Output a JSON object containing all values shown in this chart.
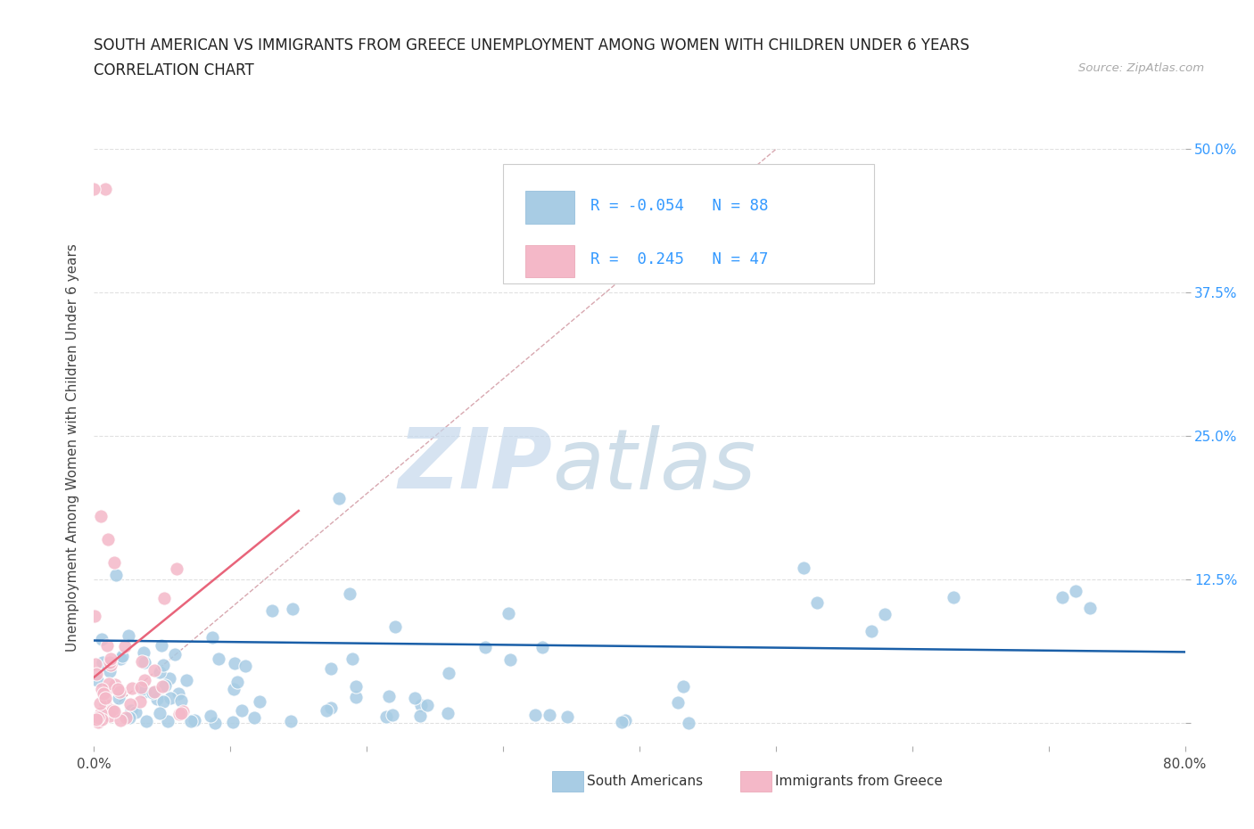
{
  "title_line1": "SOUTH AMERICAN VS IMMIGRANTS FROM GREECE UNEMPLOYMENT AMONG WOMEN WITH CHILDREN UNDER 6 YEARS",
  "title_line2": "CORRELATION CHART",
  "source_text": "Source: ZipAtlas.com",
  "ylabel": "Unemployment Among Women with Children Under 6 years",
  "xlim": [
    0.0,
    0.8
  ],
  "ylim": [
    -0.02,
    0.5
  ],
  "yticks": [
    0.0,
    0.125,
    0.25,
    0.375,
    0.5
  ],
  "color_blue": "#a8cce4",
  "color_pink": "#f4b8c8",
  "color_line_blue": "#1a5fa8",
  "color_line_pink": "#e8647a",
  "color_diag": "#d8a8b0",
  "R_blue": -0.054,
  "N_blue": 88,
  "R_pink": 0.245,
  "N_pink": 47,
  "legend_label_blue": "South Americans",
  "legend_label_pink": "Immigrants from Greece",
  "watermark_zip": "ZIP",
  "watermark_atlas": "atlas",
  "grid_color": "#e0e0e0",
  "title_fontsize": 12,
  "subtitle_fontsize": 12,
  "axis_label_fontsize": 11,
  "tick_fontsize": 11
}
